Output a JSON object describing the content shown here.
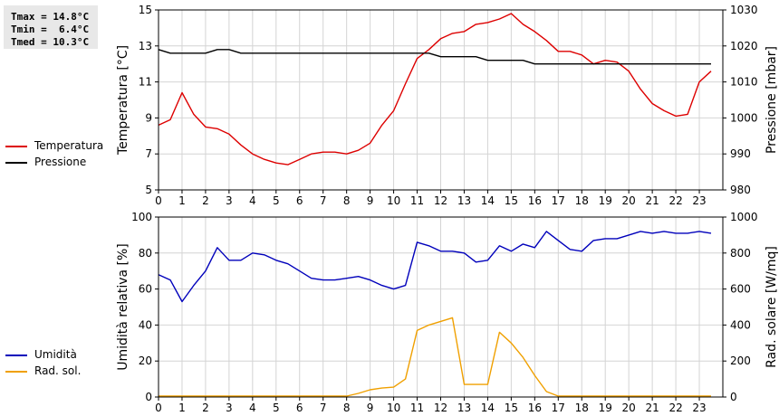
{
  "stats": {
    "tmax": "Tmax = 14.8°C",
    "tmin": "Tmin =  6.4°C",
    "tmed": "Tmed = 10.3°C"
  },
  "legend_top": [
    {
      "label": "Temperatura",
      "color": "#dd0000"
    },
    {
      "label": "Pressione",
      "color": "#000000"
    }
  ],
  "legend_bottom": [
    {
      "label": "Umidità",
      "color": "#0000bb"
    },
    {
      "label": "Rad. sol.",
      "color": "#f0a000"
    }
  ],
  "chart_data": [
    {
      "type": "line",
      "xlim": [
        0,
        24
      ],
      "x_ticks": [
        "0",
        "1",
        "2",
        "3",
        "4",
        "5",
        "6",
        "7",
        "8",
        "9",
        "10",
        "11",
        "12",
        "13",
        "14",
        "15",
        "16",
        "17",
        "18",
        "19",
        "20",
        "21",
        "22",
        "23"
      ],
      "ylabel": "Temperatura [°C]",
      "ylim": [
        5,
        15
      ],
      "y_ticks": [
        "5",
        "7",
        "9",
        "11",
        "13",
        "15"
      ],
      "y2label": "Pressione [mbar]",
      "y2lim": [
        980,
        1030
      ],
      "y2_ticks": [
        "980",
        "990",
        "1000",
        "1010",
        "1020",
        "1030"
      ],
      "grid": true,
      "series": [
        {
          "name": "Temperatura",
          "axis": "left",
          "color": "#dd0000",
          "x": [
            0,
            0.5,
            1,
            1.5,
            2,
            2.5,
            3,
            3.5,
            4,
            4.5,
            5,
            5.5,
            6,
            6.5,
            7,
            7.5,
            8,
            8.5,
            9,
            9.5,
            10,
            10.5,
            11,
            11.5,
            12,
            12.5,
            13,
            13.5,
            14,
            14.5,
            15,
            15.5,
            16,
            16.5,
            17,
            17.5,
            18,
            18.5,
            19,
            19.5,
            20,
            20.5,
            21,
            21.5,
            22,
            22.5,
            23,
            23.5
          ],
          "y": [
            8.6,
            8.9,
            10.4,
            9.2,
            8.5,
            8.4,
            8.1,
            7.5,
            7.0,
            6.7,
            6.5,
            6.4,
            6.7,
            7.0,
            7.1,
            7.1,
            7.0,
            7.2,
            7.6,
            8.6,
            9.4,
            10.9,
            12.3,
            12.8,
            13.4,
            13.7,
            13.8,
            14.2,
            14.3,
            14.5,
            14.8,
            14.2,
            13.8,
            13.3,
            12.7,
            12.7,
            12.5,
            12.0,
            12.2,
            12.1,
            11.6,
            10.6,
            9.8,
            9.4,
            9.1,
            9.2,
            11.0,
            11.6
          ]
        },
        {
          "name": "Pressione",
          "axis": "right",
          "color": "#000000",
          "x": [
            0,
            0.5,
            1,
            1.5,
            2,
            2.5,
            3,
            3.5,
            4,
            4.5,
            5,
            5.5,
            6,
            6.5,
            7,
            7.5,
            8,
            8.5,
            9,
            9.5,
            10,
            10.5,
            11,
            11.5,
            12,
            12.5,
            13,
            13.5,
            14,
            14.5,
            15,
            15.5,
            16,
            16.5,
            17,
            17.5,
            18,
            18.5,
            19,
            19.5,
            20,
            20.5,
            21,
            21.5,
            22,
            22.5,
            23,
            23.5
          ],
          "y": [
            1019,
            1018,
            1018,
            1018,
            1018,
            1019,
            1019,
            1018,
            1018,
            1018,
            1018,
            1018,
            1018,
            1018,
            1018,
            1018,
            1018,
            1018,
            1018,
            1018,
            1018,
            1018,
            1018,
            1018,
            1017,
            1017,
            1017,
            1017,
            1016,
            1016,
            1016,
            1016,
            1015,
            1015,
            1015,
            1015,
            1015,
            1015,
            1015,
            1015,
            1015,
            1015,
            1015,
            1015,
            1015,
            1015,
            1015,
            1015
          ]
        }
      ]
    },
    {
      "type": "line",
      "xlim": [
        0,
        24
      ],
      "x_ticks": [
        "0",
        "1",
        "2",
        "3",
        "4",
        "5",
        "6",
        "7",
        "8",
        "9",
        "10",
        "11",
        "12",
        "13",
        "14",
        "15",
        "16",
        "17",
        "18",
        "19",
        "20",
        "21",
        "22",
        "23"
      ],
      "ylabel": "Umidità relativa [%]",
      "ylim": [
        0,
        100
      ],
      "y_ticks": [
        "0",
        "20",
        "40",
        "60",
        "80",
        "100"
      ],
      "y2label": "Rad. solare [W/mq]",
      "y2lim": [
        0,
        1000
      ],
      "y2_ticks": [
        "0",
        "200",
        "400",
        "600",
        "800",
        "1000"
      ],
      "grid": true,
      "series": [
        {
          "name": "Umidità",
          "axis": "left",
          "color": "#0000bb",
          "x": [
            0,
            0.5,
            1,
            1.5,
            2,
            2.5,
            3,
            3.5,
            4,
            4.5,
            5,
            5.5,
            6,
            6.5,
            7,
            7.5,
            8,
            8.5,
            9,
            9.5,
            10,
            10.5,
            11,
            11.5,
            12,
            12.5,
            13,
            13.5,
            14,
            14.5,
            15,
            15.5,
            16,
            16.5,
            17,
            17.5,
            18,
            18.5,
            19,
            19.5,
            20,
            20.5,
            21,
            21.5,
            22,
            22.5,
            23,
            23.5
          ],
          "y": [
            68,
            65,
            53,
            62,
            70,
            83,
            76,
            76,
            80,
            79,
            76,
            74,
            70,
            66,
            65,
            65,
            66,
            67,
            65,
            62,
            60,
            62,
            86,
            84,
            81,
            81,
            80,
            75,
            76,
            84,
            81,
            85,
            83,
            92,
            87,
            82,
            81,
            87,
            88,
            88,
            90,
            92,
            91,
            92,
            91,
            91,
            92,
            91
          ]
        },
        {
          "name": "Rad. sol.",
          "axis": "right",
          "color": "#f0a000",
          "x": [
            0,
            0.5,
            1,
            1.5,
            2,
            2.5,
            3,
            3.5,
            4,
            4.5,
            5,
            5.5,
            6,
            6.5,
            7,
            7.5,
            8,
            8.5,
            9,
            9.5,
            10,
            10.5,
            11,
            11.5,
            12,
            12.5,
            13,
            13.5,
            14,
            14.5,
            15,
            15.5,
            16,
            16.5,
            17,
            17.5,
            18,
            18.5,
            19,
            19.5,
            20,
            20.5,
            21,
            21.5,
            22,
            22.5,
            23,
            23.5
          ],
          "y": [
            5,
            5,
            5,
            5,
            5,
            5,
            5,
            5,
            5,
            5,
            5,
            5,
            5,
            5,
            5,
            5,
            5,
            20,
            40,
            50,
            55,
            100,
            370,
            400,
            420,
            440,
            70,
            70,
            70,
            360,
            300,
            220,
            120,
            30,
            5,
            5,
            5,
            5,
            5,
            5,
            5,
            5,
            5,
            5,
            5,
            5,
            5,
            5
          ]
        }
      ]
    }
  ]
}
